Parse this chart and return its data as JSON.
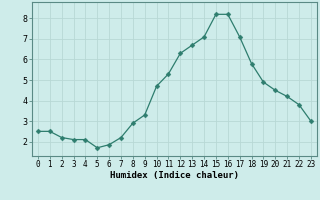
{
  "x": [
    0,
    1,
    2,
    3,
    4,
    5,
    6,
    7,
    8,
    9,
    10,
    11,
    12,
    13,
    14,
    15,
    16,
    17,
    18,
    19,
    20,
    21,
    22,
    23
  ],
  "y": [
    2.5,
    2.5,
    2.2,
    2.1,
    2.1,
    1.7,
    1.85,
    2.2,
    2.9,
    3.3,
    4.7,
    5.3,
    6.3,
    6.7,
    7.1,
    8.2,
    8.2,
    7.1,
    5.8,
    4.9,
    4.5,
    4.2,
    3.8,
    3.0
  ],
  "line_color": "#2e7d6e",
  "marker": "D",
  "marker_size": 2.5,
  "bg_color": "#ceecea",
  "grid_color": "#b8d8d5",
  "xlabel": "Humidex (Indice chaleur)",
  "xlim": [
    -0.5,
    23.5
  ],
  "ylim": [
    1.3,
    8.8
  ],
  "yticks": [
    2,
    3,
    4,
    5,
    6,
    7,
    8
  ],
  "xticks": [
    0,
    1,
    2,
    3,
    4,
    5,
    6,
    7,
    8,
    9,
    10,
    11,
    12,
    13,
    14,
    15,
    16,
    17,
    18,
    19,
    20,
    21,
    22,
    23
  ],
  "tick_fontsize": 5.5,
  "xlabel_fontsize": 6.5,
  "ytick_fontsize": 6.0
}
